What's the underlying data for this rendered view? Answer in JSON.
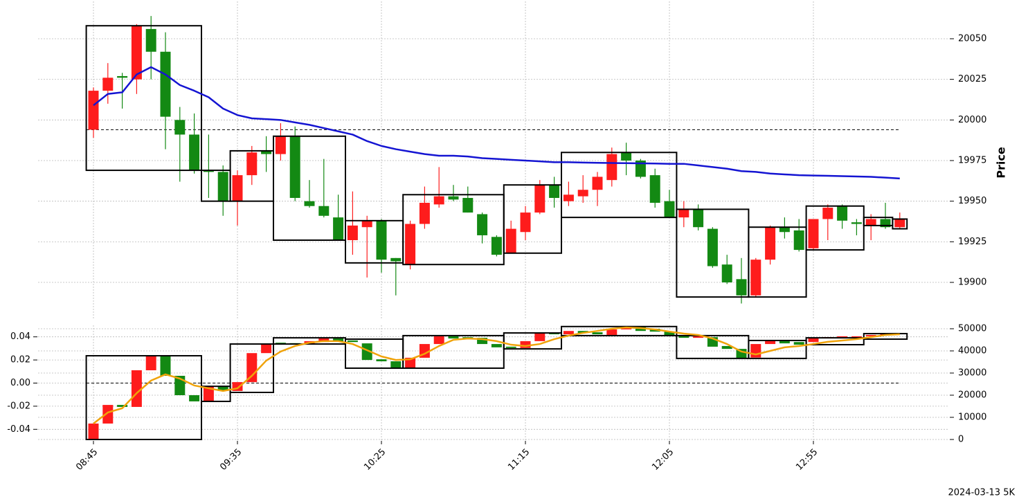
{
  "chart_data": [
    {
      "type": "candlestick",
      "ylabel": "Price",
      "grid": true,
      "up_color": "#fe1c1c",
      "down_color": "#138913",
      "ylim": [
        19877,
        20073
      ],
      "yticks": [
        19900,
        19925,
        19950,
        19975,
        20000,
        20025,
        20050
      ],
      "y_axis_side": "right",
      "open": [
        19994,
        20018,
        20027,
        20025,
        20056,
        20042,
        20000,
        19991,
        19969,
        19968,
        19950,
        19966,
        19981,
        19979,
        19990,
        19950,
        19947,
        19940,
        19926,
        19934,
        19938,
        19915,
        19911,
        19936,
        19948,
        19953,
        19952,
        19942,
        19928,
        19918,
        19931,
        19943,
        19960,
        19950,
        19953,
        19957,
        19963,
        19980,
        19975,
        19966,
        19950,
        19940,
        19945,
        19933,
        19911,
        19902,
        19892,
        19914,
        19934,
        19932,
        19921,
        19939,
        19947,
        19937,
        19935,
        19939,
        19934
      ],
      "high": [
        20020,
        20035,
        20029,
        20059,
        20064,
        20054,
        20008,
        20004,
        19991,
        19972,
        19969,
        19984,
        19990,
        19998,
        19996,
        19963,
        19976,
        19954,
        19956,
        19941,
        19939,
        19915,
        19938,
        19959,
        19971,
        19960,
        19959,
        19943,
        19929,
        19938,
        19947,
        19963,
        19965,
        19962,
        19966,
        19968,
        19983,
        19986,
        19976,
        19970,
        19957,
        19950,
        19948,
        19934,
        19917,
        19915,
        19915,
        19935,
        19940,
        19939,
        19939,
        19948,
        19948,
        19939,
        19942,
        19949,
        19943
      ],
      "low": [
        19989,
        20010,
        20007,
        20016,
        20025,
        19982,
        19962,
        19967,
        19952,
        19941,
        19935,
        19960,
        19968,
        19975,
        19950,
        19946,
        19940,
        19926,
        19917,
        19903,
        19906,
        19892,
        19908,
        19933,
        19946,
        19950,
        19943,
        19924,
        19916,
        19918,
        19926,
        19942,
        19946,
        19947,
        19949,
        19947,
        19959,
        19966,
        19964,
        19946,
        19940,
        19934,
        19932,
        19909,
        19899,
        19887,
        19891,
        19911,
        19927,
        19919,
        19920,
        19926,
        19933,
        19929,
        19926,
        19933,
        19933
      ],
      "close": [
        20018,
        20026,
        20026,
        20058,
        20042,
        20002,
        19991,
        19969,
        19968,
        19950,
        19966,
        19980,
        19979,
        19990,
        19952,
        19947,
        19941,
        19926,
        19935,
        19938,
        19914,
        19913,
        19936,
        19949,
        19953,
        19951,
        19943,
        19929,
        19917,
        19933,
        19943,
        19960,
        19952,
        19954,
        19957,
        19965,
        19979,
        19975,
        19965,
        19949,
        19940,
        19945,
        19934,
        19910,
        19900,
        19892,
        19914,
        19934,
        19931,
        19920,
        19939,
        19946,
        19938,
        19936,
        19939,
        19934,
        19939
      ],
      "series": [
        {
          "color": "#1414d2",
          "values": [
            20009,
            20016,
            20017,
            20028,
            20032.5,
            20028,
            20021.5,
            20018,
            20014,
            20007,
            20003,
            20001,
            20000.5,
            20000,
            19998.5,
            19997,
            19995,
            19993,
            19991,
            19987,
            19984,
            19982,
            19980.5,
            19979,
            19978,
            19978,
            19977.5,
            19976.5,
            19976,
            19975.5,
            19975,
            19974.5,
            19974,
            19974,
            19973.8,
            19973.6,
            19973.5,
            19973.4,
            19973.3,
            19973.2,
            19973,
            19973,
            19972,
            19971,
            19970,
            19968.5,
            19968,
            19967,
            19966.5,
            19966,
            19965.8,
            19965.6,
            19965.4,
            19965.2,
            19965,
            19964.5,
            19964
          ]
        }
      ],
      "hlines": [
        19994
      ],
      "boxes": [
        {
          "start": 0,
          "end": 7,
          "high": 20058,
          "low": 19969
        },
        {
          "start": 8,
          "end": 9,
          "high": 19969,
          "low": 19950
        },
        {
          "start": 10,
          "end": 12,
          "high": 19981,
          "low": 19950
        },
        {
          "start": 13,
          "end": 17,
          "high": 19990,
          "low": 19926
        },
        {
          "start": 18,
          "end": 21,
          "high": 19938,
          "low": 19912
        },
        {
          "start": 22,
          "end": 28,
          "high": 19954,
          "low": 19911
        },
        {
          "start": 29,
          "end": 32,
          "high": 19960,
          "low": 19918
        },
        {
          "start": 33,
          "end": 40,
          "high": 19980,
          "low": 19940
        },
        {
          "start": 41,
          "end": 45,
          "high": 19945,
          "low": 19891
        },
        {
          "start": 46,
          "end": 49,
          "high": 19934,
          "low": 19891
        },
        {
          "start": 50,
          "end": 53,
          "high": 19947,
          "low": 19920
        },
        {
          "start": 54,
          "end": 55,
          "high": 19940,
          "low": 19935
        },
        {
          "start": 56,
          "end": 56,
          "high": 19939,
          "low": 19933
        }
      ]
    },
    {
      "type": "candlestick",
      "grid": true,
      "up_color": "#fe1c1c",
      "down_color": "#138913",
      "annotation": "2024-03-13 5K",
      "categories": [
        "08:45",
        null,
        null,
        null,
        null,
        null,
        null,
        null,
        null,
        null,
        "09:35",
        null,
        null,
        null,
        null,
        null,
        null,
        null,
        null,
        null,
        "10:25",
        null,
        null,
        null,
        null,
        null,
        null,
        null,
        null,
        null,
        "11:15",
        null,
        null,
        null,
        null,
        null,
        null,
        null,
        null,
        null,
        "12:05",
        null,
        null,
        null,
        null,
        null,
        null,
        null,
        null,
        null,
        "12:55",
        null,
        null,
        null,
        null,
        null,
        null
      ],
      "ylim": [
        -0.05,
        0.05
      ],
      "yticks": [
        -0.04,
        -0.02,
        {
          "value": 0,
          "label": "0.00"
        },
        0.02,
        0.04
      ],
      "y2lim": [
        -625,
        51560
      ],
      "y2ticks": [
        0,
        10000,
        20000,
        30000,
        40000,
        50000
      ],
      "candle_axis": "y2",
      "open": [
        0,
        7200,
        15600,
        14700,
        31250,
        37800,
        28750,
        20000,
        17500,
        23750,
        21900,
        25900,
        39000,
        43700,
        43500,
        43100,
        44000,
        45600,
        44700,
        43400,
        36200,
        35300,
        32500,
        36900,
        43100,
        46600,
        46200,
        45900,
        43100,
        41900,
        41300,
        44400,
        48100,
        47500,
        49000,
        48400,
        47200,
        49700,
        51000,
        50000,
        48700,
        46900,
        45900,
        46200,
        42200,
        40900,
        37000,
        43100,
        44400,
        44000,
        44000,
        45900,
        46200,
        46300,
        46600,
        47200,
        48100
      ],
      "close": [
        7200,
        15600,
        14700,
        31250,
        37800,
        28750,
        20000,
        17200,
        23750,
        21900,
        25900,
        39000,
        43100,
        43100,
        43100,
        44400,
        45600,
        44400,
        44000,
        35900,
        35300,
        32500,
        36900,
        43100,
        46600,
        45600,
        45300,
        43100,
        41600,
        41300,
        44400,
        48100,
        47500,
        49000,
        48100,
        47500,
        49700,
        51000,
        49000,
        48700,
        46900,
        45900,
        46600,
        41900,
        40900,
        36500,
        43100,
        44700,
        43400,
        42800,
        45900,
        46200,
        46600,
        46600,
        47200,
        47500,
        47800
      ],
      "series": [
        {
          "color": "#f0a30a",
          "axis": "y2",
          "values": [
            7200,
            12200,
            14100,
            20900,
            26600,
            29400,
            27500,
            24400,
            23100,
            21900,
            23100,
            28750,
            35600,
            39700,
            42200,
            43700,
            44400,
            44400,
            43100,
            40300,
            37500,
            35900,
            36200,
            38700,
            42200,
            45000,
            45600,
            45300,
            44400,
            42800,
            42200,
            43100,
            45300,
            46900,
            48100,
            49000,
            50000,
            50600,
            50300,
            49700,
            48700,
            47800,
            47200,
            45600,
            43100,
            39700,
            38400,
            40000,
            41600,
            42200,
            43100,
            44100,
            44700,
            45300,
            46200,
            47200,
            47500
          ]
        }
      ],
      "hlines": [
        0
      ],
      "boxes": [
        {
          "start": 0,
          "end": 7,
          "high": 37800,
          "low": 0
        },
        {
          "start": 8,
          "end": 9,
          "high": 24000,
          "low": 17200
        },
        {
          "start": 10,
          "end": 12,
          "high": 43100,
          "low": 21250
        },
        {
          "start": 13,
          "end": 17,
          "high": 45900,
          "low": 43100
        },
        {
          "start": 18,
          "end": 21,
          "high": 45300,
          "low": 32200
        },
        {
          "start": 22,
          "end": 28,
          "high": 46900,
          "low": 32200
        },
        {
          "start": 29,
          "end": 32,
          "high": 48100,
          "low": 40900
        },
        {
          "start": 33,
          "end": 40,
          "high": 51000,
          "low": 46900
        },
        {
          "start": 41,
          "end": 45,
          "high": 46900,
          "low": 36600
        },
        {
          "start": 46,
          "end": 49,
          "high": 44700,
          "low": 36600
        },
        {
          "start": 50,
          "end": 53,
          "high": 45900,
          "low": 42800
        },
        {
          "start": 54,
          "end": 56,
          "high": 47800,
          "low": 45300
        }
      ]
    }
  ]
}
